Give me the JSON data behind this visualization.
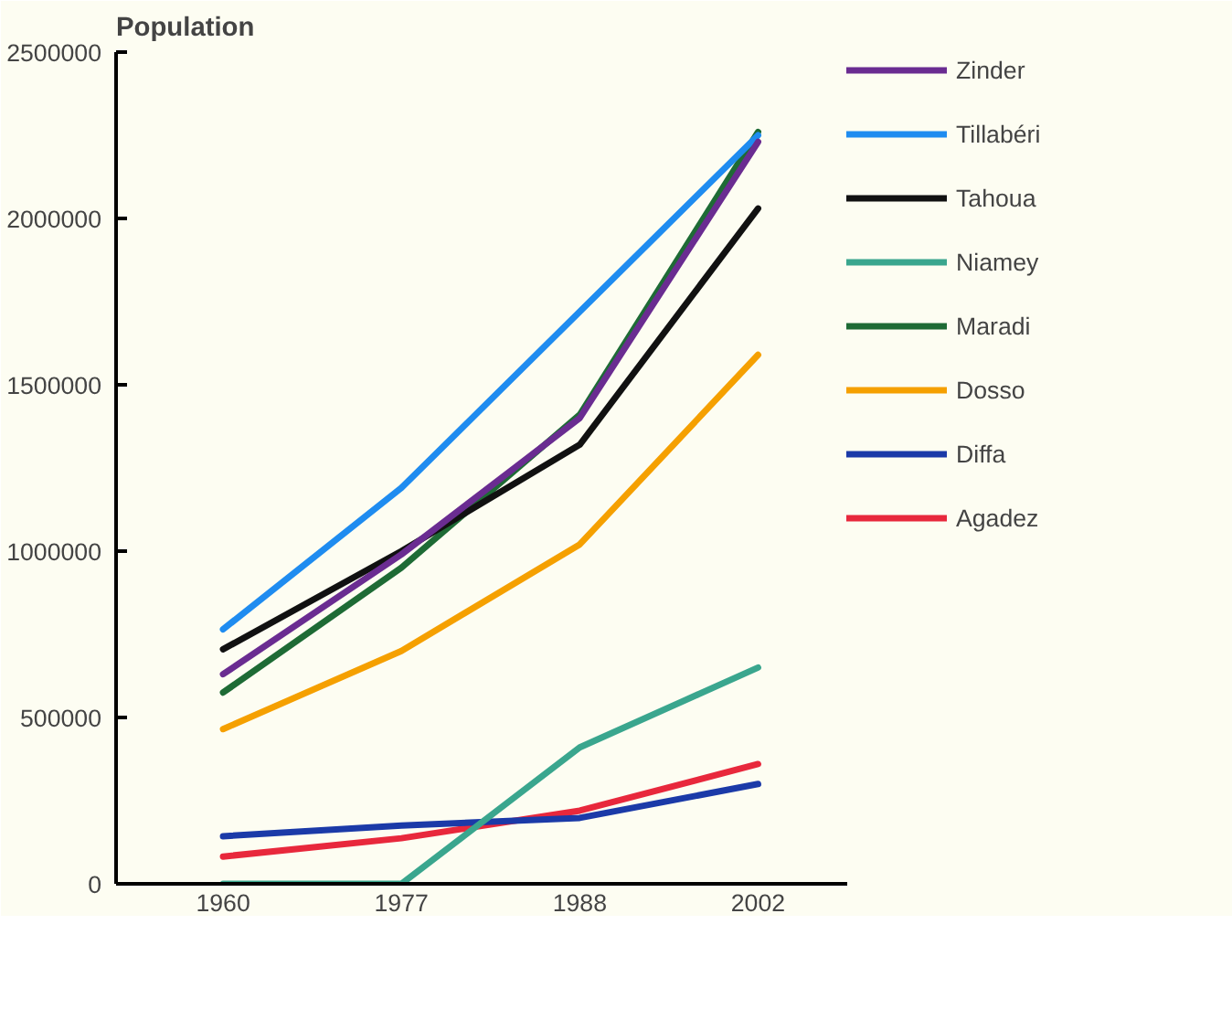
{
  "chart_data": {
    "type": "line",
    "ylabel": "Population",
    "categories": [
      "1960",
      "1977",
      "1988",
      "2002"
    ],
    "ylim": [
      0,
      2500000
    ],
    "yticks": [
      0,
      500000,
      1000000,
      1500000,
      2000000,
      2500000
    ],
    "grid": false,
    "legend": "right",
    "marker": "none",
    "line_style": "solid",
    "series": [
      {
        "name": "Zinder",
        "color": "#6a2c91",
        "values": [
          630000,
          990000,
          1400000,
          2230000
        ]
      },
      {
        "name": "Tillabéri",
        "color": "#1f8cf0",
        "values": [
          765000,
          1190000,
          1720000,
          2250000
        ]
      },
      {
        "name": "Tahoua",
        "color": "#111111",
        "values": [
          705000,
          1000000,
          1320000,
          2030000
        ]
      },
      {
        "name": "Niamey",
        "color": "#3aa68e",
        "values": [
          0,
          0,
          410000,
          650000
        ]
      },
      {
        "name": "Maradi",
        "color": "#1e6b35",
        "values": [
          575000,
          950000,
          1410000,
          2260000
        ]
      },
      {
        "name": "Dosso",
        "color": "#f5a000",
        "values": [
          465000,
          700000,
          1020000,
          1590000
        ]
      },
      {
        "name": "Diffa",
        "color": "#1b3aa8",
        "values": [
          143000,
          175000,
          198000,
          300000
        ]
      },
      {
        "name": "Agadez",
        "color": "#e8283c",
        "values": [
          82000,
          137000,
          220000,
          360000
        ]
      }
    ]
  }
}
